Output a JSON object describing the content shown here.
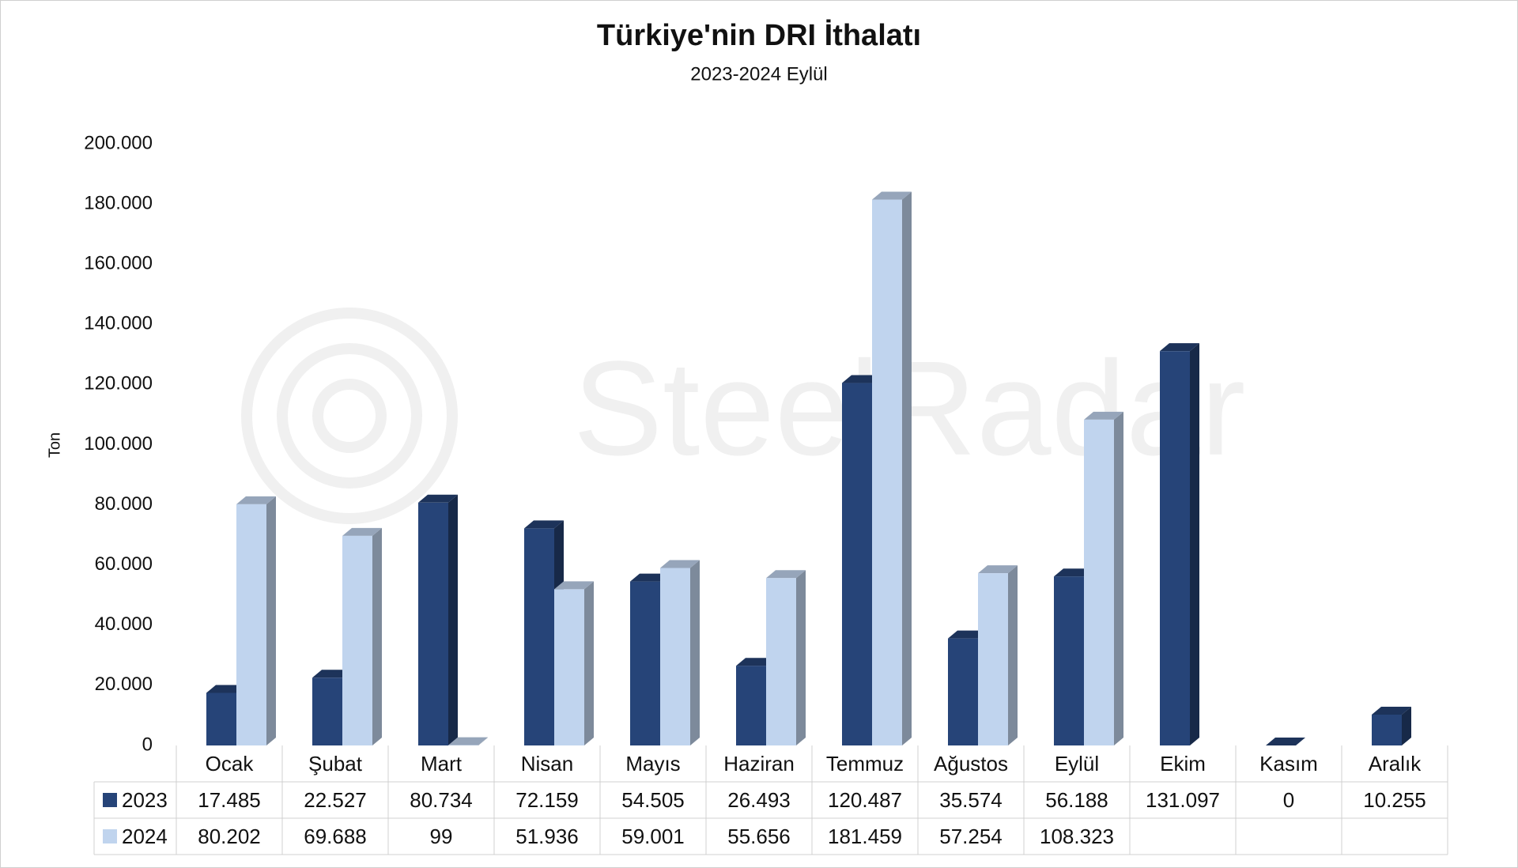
{
  "chart_data": {
    "type": "bar3d",
    "title": "Türkiye'nin DRI İthalatı",
    "subtitle": "2023-2024 Eylül",
    "y_label": "Ton",
    "watermark": "SteelRadar",
    "categories": [
      "Ocak",
      "Şubat",
      "Mart",
      "Nisan",
      "Mayıs",
      "Haziran",
      "Temmuz",
      "Ağustos",
      "Eylül",
      "Ekim",
      "Kasım",
      "Aralık"
    ],
    "series": [
      {
        "name": "2023",
        "color": "#264478",
        "values": [
          17485,
          22527,
          80734,
          72159,
          54505,
          26493,
          120487,
          35574,
          56188,
          131097,
          0,
          10255
        ],
        "value_labels": [
          "17.485",
          "22.527",
          "80.734",
          "72.159",
          "54.505",
          "26.493",
          "120.487",
          "35.574",
          "56.188",
          "131.097",
          "0",
          "10.255"
        ]
      },
      {
        "name": "2024",
        "color": "#c0d4ee",
        "values": [
          80202,
          69688,
          99,
          51936,
          59001,
          55656,
          181459,
          57254,
          108323,
          null,
          null,
          null
        ],
        "value_labels": [
          "80.202",
          "69.688",
          "99",
          "51.936",
          "59.001",
          "55.656",
          "181.459",
          "57.254",
          "108.323",
          null,
          null,
          null
        ]
      }
    ],
    "ylim": [
      0,
      200000
    ],
    "yticks": [
      0,
      {
        "value": 20000,
        "label": "20.000"
      },
      {
        "value": 40000,
        "label": "40.000"
      },
      {
        "value": 60000,
        "label": "60.000"
      },
      {
        "value": 80000,
        "label": "80.000"
      },
      {
        "value": 100000,
        "label": "100.000"
      },
      {
        "value": 120000,
        "label": "120.000"
      },
      {
        "value": 140000,
        "label": "140.000"
      },
      {
        "value": 160000,
        "label": "160.000"
      },
      {
        "value": 180000,
        "label": "180.000"
      },
      {
        "value": 200000,
        "label": "200.000"
      }
    ],
    "data_table": true
  }
}
